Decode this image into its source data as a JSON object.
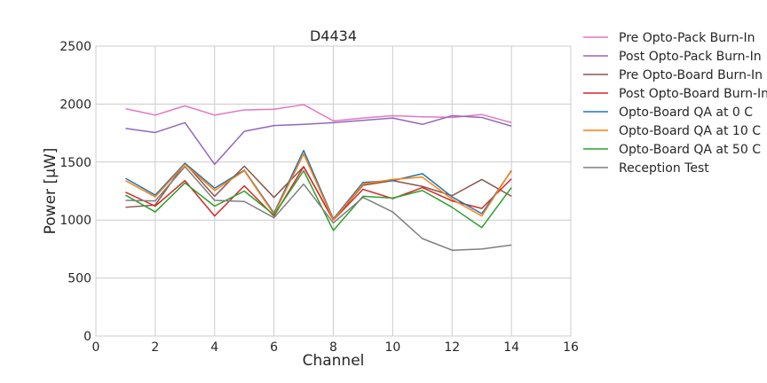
{
  "chart_data": {
    "type": "line",
    "title": "D4434",
    "xlabel": "Channel",
    "ylabel": "Power [μW]",
    "xlim": [
      0,
      16
    ],
    "ylim": [
      0,
      2500
    ],
    "xticks": [
      0,
      2,
      4,
      6,
      8,
      10,
      12,
      14,
      16
    ],
    "yticks": [
      0,
      500,
      1000,
      1500,
      2000,
      2500
    ],
    "grid": true,
    "legend": "outside-right",
    "x": [
      1,
      2,
      3,
      4,
      5,
      6,
      7,
      8,
      9,
      10,
      11,
      12,
      13,
      14
    ],
    "series": [
      {
        "name": "Pre Opto-Pack Burn-In",
        "color": "#e377c2",
        "values": [
          1960,
          1905,
          1985,
          1905,
          1950,
          1955,
          1995,
          1855,
          1880,
          1900,
          1890,
          1885,
          1910,
          1840
        ]
      },
      {
        "name": "Post Opto-Pack Burn-In",
        "color": "#9467bd",
        "values": [
          1790,
          1755,
          1840,
          1480,
          1765,
          1815,
          1825,
          1840,
          1860,
          1880,
          1825,
          1900,
          1885,
          1810
        ]
      },
      {
        "name": "Pre Opto-Board Burn-In",
        "color": "#8c564b",
        "values": [
          1110,
          1130,
          1490,
          1205,
          1465,
          1195,
          1460,
          1000,
          1300,
          1340,
          1290,
          1210,
          1350,
          1205
        ]
      },
      {
        "name": "Post Opto-Board Burn-In",
        "color": "#d62728",
        "values": [
          1240,
          1120,
          1340,
          1035,
          1295,
          1035,
          1460,
          1000,
          1265,
          1185,
          1280,
          1165,
          1100,
          1355
        ]
      },
      {
        "name": "Opto-Board QA at 0 C",
        "color": "#1f77b4",
        "values": [
          1360,
          1215,
          1490,
          1275,
          1430,
          1060,
          1600,
          1010,
          1325,
          1340,
          1400,
          1200,
          1055,
          1425
        ]
      },
      {
        "name": "Opto-Board QA at 10 C",
        "color": "#ff7f0e",
        "values": [
          1340,
          1200,
          1480,
          1255,
          1425,
          1050,
          1570,
          1000,
          1310,
          1350,
          1370,
          1180,
          1035,
          1430
        ]
      },
      {
        "name": "Opto-Board QA at 50 C",
        "color": "#2ca02c",
        "values": [
          1215,
          1070,
          1320,
          1120,
          1250,
          1045,
          1425,
          910,
          1205,
          1190,
          1255,
          1110,
          935,
          1280
        ]
      },
      {
        "name": "Reception Test",
        "color": "#7f7f7f",
        "values": [
          1170,
          1165,
          1460,
          1170,
          1160,
          1020,
          1310,
          975,
          1195,
          1070,
          840,
          740,
          750,
          785
        ]
      }
    ]
  }
}
